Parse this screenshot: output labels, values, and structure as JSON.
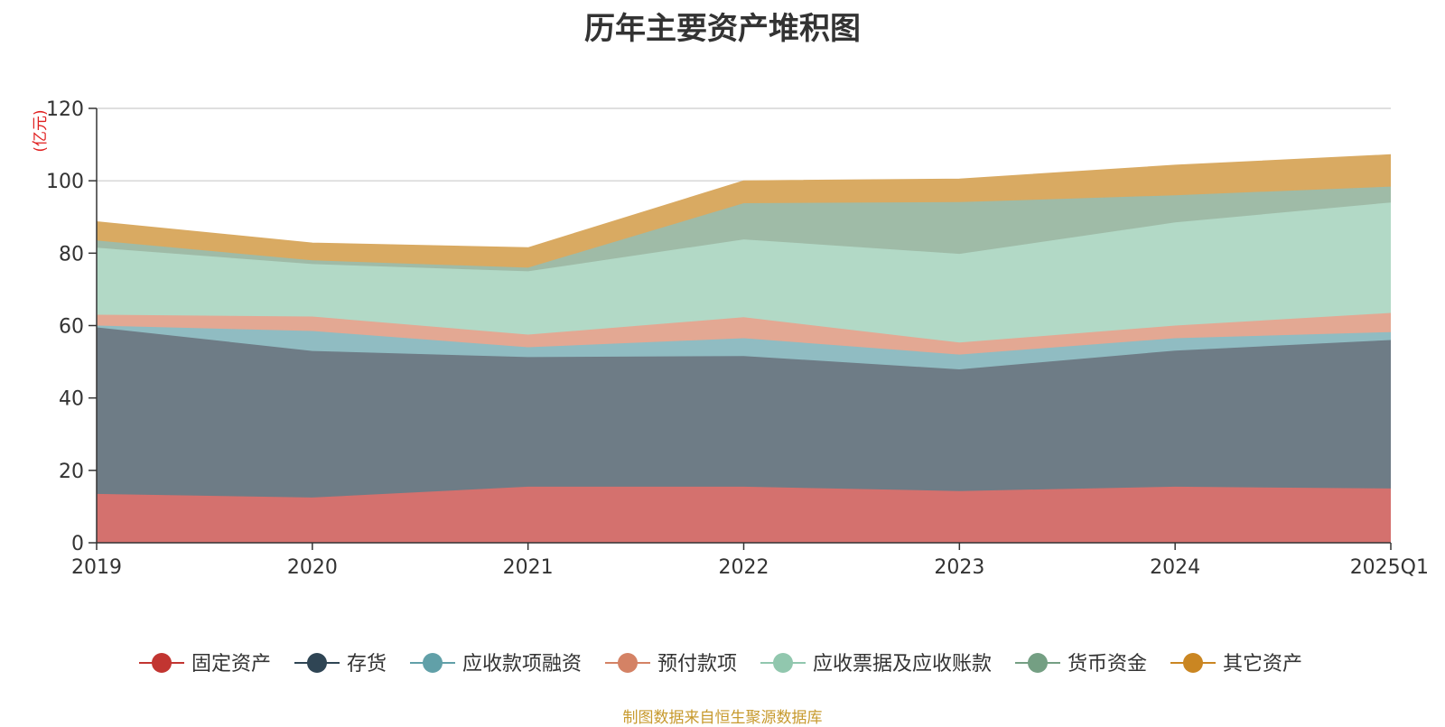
{
  "chart_data": {
    "type": "area",
    "stacked": true,
    "title": "历年主要资产堆积图",
    "unit": "(亿元)",
    "categories": [
      "2019",
      "2020",
      "2021",
      "2022",
      "2023",
      "2024",
      "2025Q1"
    ],
    "y_ticks": [
      "0",
      "20",
      "40",
      "60",
      "80",
      "100",
      "120"
    ],
    "ylim": [
      0,
      120
    ],
    "grid": true,
    "legend_position": "bottom",
    "series": [
      {
        "name": "固定资产",
        "color": "#c23531",
        "area_color": "#d4716e",
        "values": [
          13.5,
          12.5,
          15.5,
          15.5,
          14.3,
          15.5,
          15.0
        ]
      },
      {
        "name": "存货",
        "color": "#2f4554",
        "area_color": "#6e7c86",
        "values": [
          46.0,
          40.5,
          35.8,
          36.1,
          33.6,
          37.6,
          41.0
        ]
      },
      {
        "name": "应收款项融资",
        "color": "#61a0a8",
        "area_color": "#90bcc2",
        "values": [
          0.5,
          5.5,
          2.7,
          4.9,
          4.1,
          3.4,
          2.2
        ]
      },
      {
        "name": "预付款项",
        "color": "#d48265",
        "area_color": "#e3a893",
        "values": [
          3.0,
          4.0,
          3.5,
          5.8,
          3.3,
          3.5,
          5.3
        ]
      },
      {
        "name": "应收票据及应收账款",
        "color": "#91c7ae",
        "area_color": "#b2d9c6",
        "values": [
          18.5,
          14.5,
          17.5,
          21.5,
          24.5,
          28.5,
          30.5
        ]
      },
      {
        "name": "货币资金",
        "color": "#749f83",
        "area_color": "#9fbba7",
        "values": [
          2.0,
          1.0,
          1.0,
          10.0,
          14.3,
          7.5,
          4.4
        ]
      },
      {
        "name": "其它资产",
        "color": "#ca8622",
        "area_color": "#d9aa62",
        "values": [
          5.2,
          4.8,
          5.5,
          6.2,
          6.4,
          8.3,
          8.8
        ]
      }
    ]
  },
  "footer": {
    "source": "制图数据来自恒生聚源数据库"
  }
}
